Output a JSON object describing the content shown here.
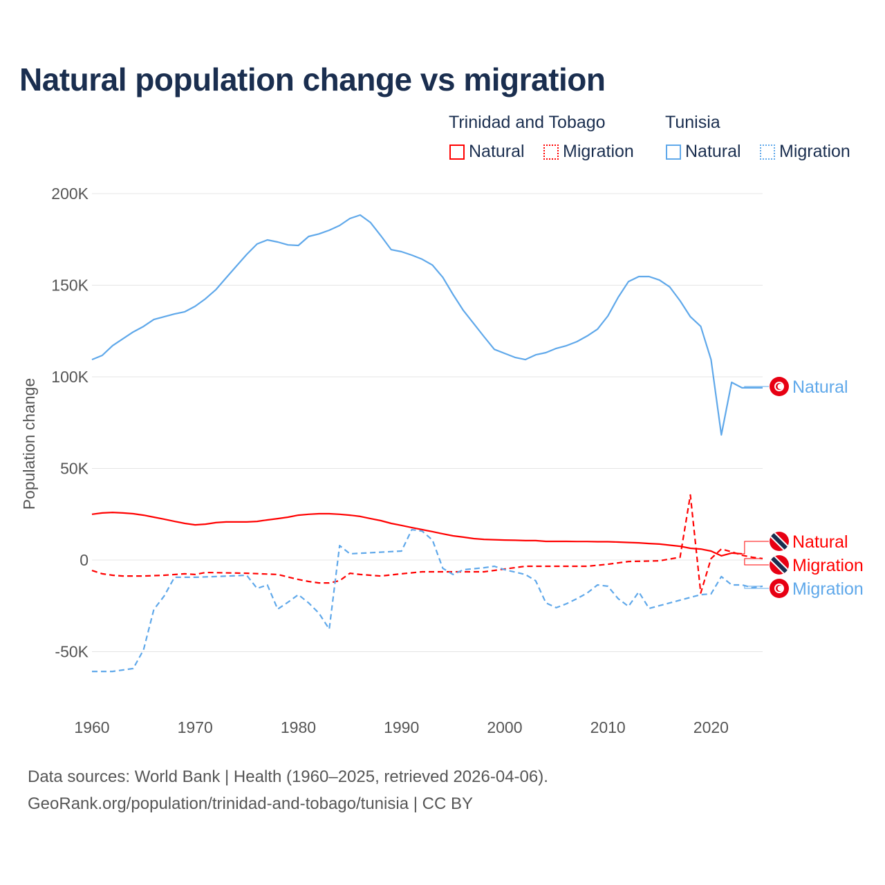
{
  "title": "Natural population change vs migration",
  "legend": {
    "groups": [
      {
        "name": "Trinidad and Tobago",
        "items": [
          "Natural",
          "Migration"
        ]
      },
      {
        "name": "Tunisia",
        "items": [
          "Natural",
          "Migration"
        ]
      }
    ]
  },
  "footer": {
    "line1": "Data sources: World Bank | Health (1960–2025, retrieved 2026-04-06).",
    "line2": "GeoRank.org/population/trinidad-and-tobago/tunisia | CC BY"
  },
  "colors": {
    "tt": "#ff0000",
    "tn": "#5fa8ea",
    "text": "#1a2e4f"
  },
  "chart_data": {
    "type": "line",
    "ylabel": "Population change",
    "xlabel": "",
    "xlim": [
      1960,
      2025
    ],
    "ylim": [
      -70000,
      200000
    ],
    "xticks": [
      1960,
      1970,
      1980,
      1990,
      2000,
      2010,
      2020
    ],
    "xtick_labels": [
      "1960",
      "1970",
      "1980",
      "1990",
      "2000",
      "2010",
      "2020"
    ],
    "yticks": [
      -50000,
      0,
      50000,
      100000,
      150000,
      200000
    ],
    "ytick_labels": [
      "-50K",
      "0",
      "50K",
      "100K",
      "150K",
      "200K"
    ],
    "grid": true,
    "series": [
      {
        "name": "Natural",
        "country": "Tunisia",
        "dashed": false,
        "color": "#5fa8ea",
        "end_label": "Natural",
        "flag": "tunisia",
        "points": [
          [
            1960,
            109400
          ],
          [
            1961,
            111700
          ],
          [
            1962,
            117000
          ],
          [
            1963,
            120800
          ],
          [
            1964,
            124500
          ],
          [
            1965,
            127500
          ],
          [
            1966,
            131300
          ],
          [
            1967,
            132800
          ],
          [
            1968,
            134300
          ],
          [
            1969,
            135500
          ],
          [
            1970,
            138500
          ],
          [
            1971,
            142600
          ],
          [
            1972,
            147500
          ],
          [
            1973,
            154000
          ],
          [
            1974,
            160400
          ],
          [
            1975,
            166800
          ],
          [
            1976,
            172500
          ],
          [
            1977,
            174700
          ],
          [
            1978,
            173600
          ],
          [
            1979,
            172000
          ],
          [
            1980,
            171700
          ],
          [
            1981,
            176600
          ],
          [
            1982,
            178000
          ],
          [
            1983,
            180000
          ],
          [
            1984,
            182600
          ],
          [
            1985,
            186400
          ],
          [
            1986,
            188300
          ],
          [
            1987,
            184200
          ],
          [
            1988,
            177000
          ],
          [
            1989,
            169400
          ],
          [
            1990,
            168300
          ],
          [
            1991,
            166400
          ],
          [
            1992,
            164200
          ],
          [
            1993,
            161000
          ],
          [
            1994,
            154300
          ],
          [
            1995,
            144900
          ],
          [
            1996,
            136200
          ],
          [
            1997,
            129000
          ],
          [
            1998,
            121900
          ],
          [
            1999,
            115000
          ],
          [
            2000,
            112800
          ],
          [
            2001,
            110600
          ],
          [
            2002,
            109400
          ],
          [
            2003,
            112000
          ],
          [
            2004,
            113200
          ],
          [
            2005,
            115500
          ],
          [
            2006,
            117000
          ],
          [
            2007,
            119200
          ],
          [
            2008,
            122300
          ],
          [
            2009,
            126000
          ],
          [
            2010,
            133200
          ],
          [
            2011,
            143400
          ],
          [
            2012,
            152000
          ],
          [
            2013,
            154700
          ],
          [
            2014,
            154700
          ],
          [
            2015,
            152800
          ],
          [
            2016,
            149000
          ],
          [
            2017,
            141500
          ],
          [
            2018,
            132800
          ],
          [
            2019,
            127500
          ],
          [
            2020,
            109400
          ],
          [
            2021,
            68300
          ],
          [
            2022,
            97000
          ],
          [
            2023,
            94000
          ],
          [
            2024,
            94000
          ],
          [
            2025,
            94000
          ]
        ]
      },
      {
        "name": "Natural",
        "country": "Trinidad and Tobago",
        "dashed": false,
        "color": "#ff0000",
        "end_label": "Natural",
        "flag": "trinidad",
        "points": [
          [
            1960,
            25000
          ],
          [
            1961,
            25700
          ],
          [
            1962,
            26000
          ],
          [
            1963,
            25700
          ],
          [
            1964,
            25300
          ],
          [
            1965,
            24500
          ],
          [
            1966,
            23400
          ],
          [
            1967,
            22300
          ],
          [
            1968,
            21100
          ],
          [
            1969,
            20000
          ],
          [
            1970,
            19200
          ],
          [
            1971,
            19600
          ],
          [
            1972,
            20400
          ],
          [
            1973,
            20800
          ],
          [
            1974,
            20800
          ],
          [
            1975,
            20800
          ],
          [
            1976,
            21100
          ],
          [
            1977,
            21900
          ],
          [
            1978,
            22600
          ],
          [
            1979,
            23400
          ],
          [
            1980,
            24500
          ],
          [
            1981,
            25000
          ],
          [
            1982,
            25300
          ],
          [
            1983,
            25300
          ],
          [
            1984,
            25000
          ],
          [
            1985,
            24500
          ],
          [
            1986,
            23800
          ],
          [
            1987,
            22600
          ],
          [
            1988,
            21500
          ],
          [
            1989,
            20000
          ],
          [
            1990,
            18900
          ],
          [
            1991,
            17700
          ],
          [
            1992,
            16600
          ],
          [
            1993,
            15500
          ],
          [
            1994,
            14300
          ],
          [
            1995,
            13200
          ],
          [
            1996,
            12500
          ],
          [
            1997,
            11700
          ],
          [
            1998,
            11300
          ],
          [
            1999,
            11100
          ],
          [
            2000,
            10900
          ],
          [
            2001,
            10800
          ],
          [
            2002,
            10600
          ],
          [
            2003,
            10600
          ],
          [
            2004,
            10200
          ],
          [
            2005,
            10200
          ],
          [
            2006,
            10200
          ],
          [
            2007,
            10100
          ],
          [
            2008,
            10100
          ],
          [
            2009,
            10000
          ],
          [
            2010,
            10000
          ],
          [
            2011,
            9800
          ],
          [
            2012,
            9600
          ],
          [
            2013,
            9400
          ],
          [
            2014,
            9000
          ],
          [
            2015,
            8700
          ],
          [
            2016,
            8100
          ],
          [
            2017,
            7500
          ],
          [
            2018,
            6400
          ],
          [
            2019,
            6000
          ],
          [
            2020,
            4900
          ],
          [
            2021,
            2300
          ],
          [
            2022,
            3800
          ],
          [
            2023,
            3400
          ]
        ]
      },
      {
        "name": "Migration",
        "country": "Trinidad and Tobago",
        "dashed": true,
        "color": "#ff0000",
        "end_label": "Migration",
        "flag": "trinidad",
        "points": [
          [
            1960,
            -5700
          ],
          [
            1961,
            -7500
          ],
          [
            1962,
            -8300
          ],
          [
            1963,
            -8700
          ],
          [
            1965,
            -8700
          ],
          [
            1967,
            -8300
          ],
          [
            1969,
            -7500
          ],
          [
            1970,
            -7900
          ],
          [
            1971,
            -6800
          ],
          [
            1975,
            -7200
          ],
          [
            1978,
            -7900
          ],
          [
            1980,
            -10600
          ],
          [
            1981,
            -11700
          ],
          [
            1982,
            -12500
          ],
          [
            1983,
            -12500
          ],
          [
            1984,
            -11300
          ],
          [
            1985,
            -7200
          ],
          [
            1986,
            -7900
          ],
          [
            1988,
            -8700
          ],
          [
            1990,
            -7500
          ],
          [
            1992,
            -6400
          ],
          [
            1995,
            -6400
          ],
          [
            1998,
            -6400
          ],
          [
            2000,
            -4900
          ],
          [
            2002,
            -3400
          ],
          [
            2005,
            -3400
          ],
          [
            2008,
            -3400
          ],
          [
            2010,
            -2300
          ],
          [
            2012,
            -800
          ],
          [
            2015,
            -400
          ],
          [
            2017,
            1500
          ],
          [
            2018,
            35500
          ],
          [
            2019,
            -18000
          ],
          [
            2020,
            800
          ],
          [
            2021,
            6000
          ],
          [
            2022,
            4500
          ],
          [
            2023,
            2600
          ],
          [
            2024,
            1500
          ],
          [
            2025,
            800
          ]
        ]
      },
      {
        "name": "Migration",
        "country": "Tunisia",
        "dashed": true,
        "color": "#5fa8ea",
        "end_label": "Migration",
        "flag": "tunisia",
        "points": [
          [
            1960,
            -60800
          ],
          [
            1961,
            -60800
          ],
          [
            1962,
            -60800
          ],
          [
            1963,
            -60000
          ],
          [
            1964,
            -59200
          ],
          [
            1965,
            -49000
          ],
          [
            1966,
            -27000
          ],
          [
            1967,
            -19600
          ],
          [
            1968,
            -9400
          ],
          [
            1970,
            -9400
          ],
          [
            1972,
            -9000
          ],
          [
            1975,
            -8300
          ],
          [
            1976,
            -15500
          ],
          [
            1977,
            -13600
          ],
          [
            1978,
            -26800
          ],
          [
            1979,
            -23000
          ],
          [
            1980,
            -18900
          ],
          [
            1981,
            -23400
          ],
          [
            1982,
            -29000
          ],
          [
            1983,
            -37700
          ],
          [
            1984,
            7900
          ],
          [
            1985,
            3400
          ],
          [
            1990,
            4900
          ],
          [
            1991,
            16600
          ],
          [
            1992,
            15800
          ],
          [
            1993,
            10900
          ],
          [
            1994,
            -4500
          ],
          [
            1995,
            -7900
          ],
          [
            1996,
            -5300
          ],
          [
            1998,
            -4200
          ],
          [
            1999,
            -3400
          ],
          [
            2000,
            -5300
          ],
          [
            2002,
            -7900
          ],
          [
            2003,
            -11300
          ],
          [
            2004,
            -23400
          ],
          [
            2005,
            -26000
          ],
          [
            2006,
            -23800
          ],
          [
            2007,
            -21100
          ],
          [
            2008,
            -18000
          ],
          [
            2009,
            -13600
          ],
          [
            2010,
            -14300
          ],
          [
            2011,
            -21100
          ],
          [
            2012,
            -25300
          ],
          [
            2013,
            -17400
          ],
          [
            2014,
            -26400
          ],
          [
            2017,
            -21900
          ],
          [
            2019,
            -18900
          ],
          [
            2020,
            -18500
          ],
          [
            2021,
            -9000
          ],
          [
            2022,
            -13600
          ],
          [
            2023,
            -13600
          ],
          [
            2024,
            -15100
          ],
          [
            2025,
            -14300
          ]
        ]
      }
    ]
  }
}
